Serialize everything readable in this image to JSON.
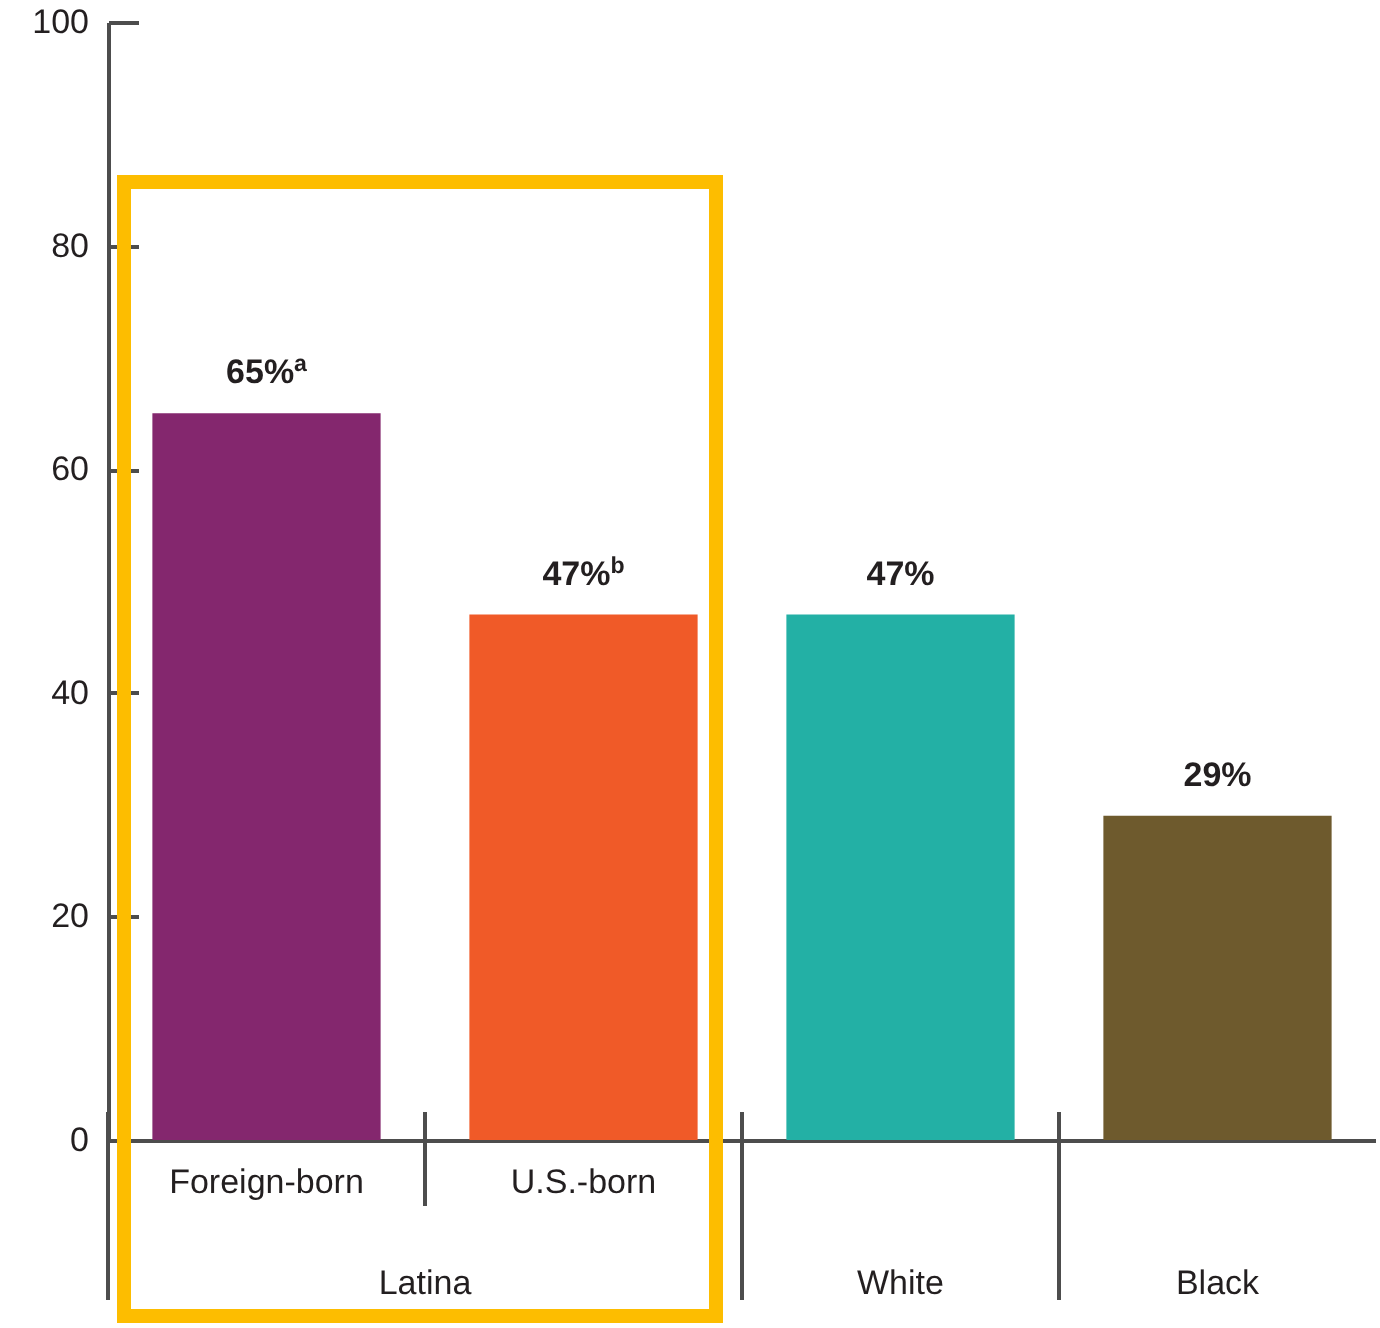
{
  "chart_data": {
    "type": "bar",
    "categories": [
      "Foreign-born",
      "U.S.-born",
      "White",
      "Black"
    ],
    "values": [
      65,
      47,
      47,
      29
    ],
    "colors": [
      "#84276e",
      "#f05a28",
      "#23b0a5",
      "#6e5a2d"
    ],
    "value_labels": [
      "65%$^{a}$",
      "47%$^{b}$",
      "47%",
      "29%"
    ],
    "ylim": [
      0,
      100
    ],
    "yticks": [
      0,
      20,
      40,
      60,
      80,
      100
    ],
    "annotations": [
      "Latina"
    ],
    "grid": false
  }
}
